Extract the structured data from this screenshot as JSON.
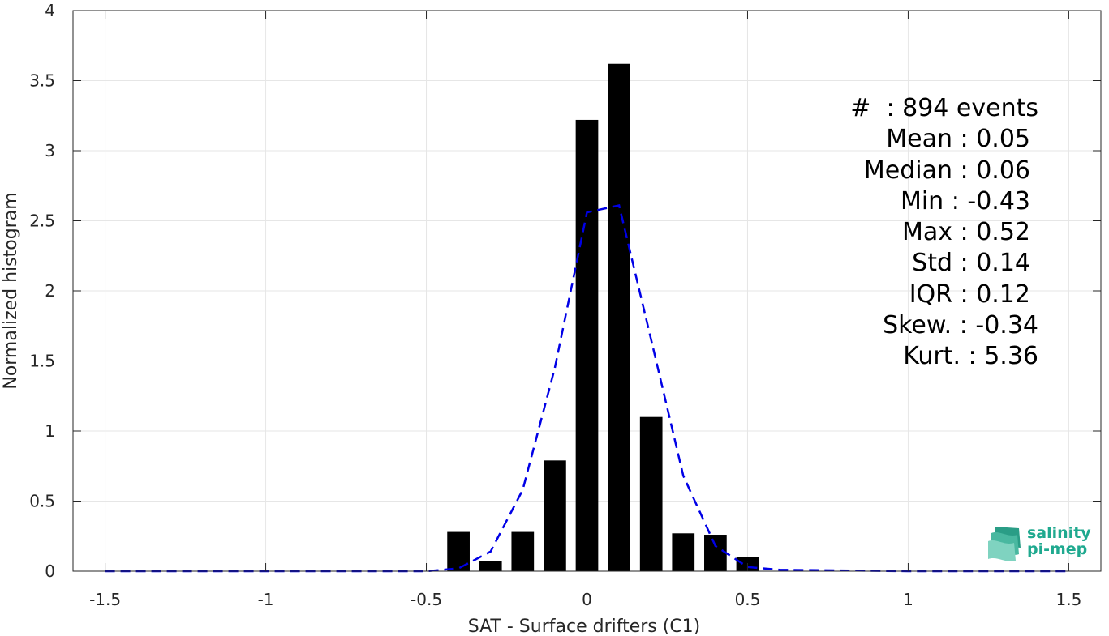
{
  "chart_data": {
    "type": "bar",
    "xlabel": "SAT - Surface drifters (C1)",
    "ylabel": "Normalized histogram",
    "xlim": [
      -1.6,
      1.6
    ],
    "ylim": [
      0,
      4
    ],
    "grid": true,
    "x_ticks": [
      "-1.5",
      "-1",
      "-0.5",
      "0",
      "0.5",
      "1",
      "1.5"
    ],
    "x_tick_values": [
      -1.5,
      -1,
      -0.5,
      0,
      0.5,
      1,
      1.5
    ],
    "y_ticks": [
      "0",
      "0.5",
      "1",
      "1.5",
      "2",
      "2.5",
      "3",
      "3.5",
      "4"
    ],
    "y_tick_values": [
      0,
      0.5,
      1,
      1.5,
      2,
      2.5,
      3,
      3.5,
      4
    ],
    "bars": {
      "x": [
        -0.4,
        -0.3,
        -0.2,
        -0.1,
        0.0,
        0.1,
        0.2,
        0.3,
        0.4,
        0.5
      ],
      "values": [
        0.28,
        0.07,
        0.28,
        0.79,
        3.22,
        3.62,
        1.1,
        0.27,
        0.26,
        0.1
      ],
      "color": "#000000"
    },
    "fit_line": {
      "style": "dashed",
      "color": "#0000e6",
      "x": [
        -1.5,
        -1.0,
        -0.5,
        -0.4,
        -0.3,
        -0.2,
        -0.1,
        0.0,
        0.1,
        0.2,
        0.3,
        0.4,
        0.5,
        0.6,
        1.0,
        1.5
      ],
      "y": [
        0,
        0,
        0.0,
        0.02,
        0.14,
        0.58,
        1.45,
        2.56,
        2.61,
        1.65,
        0.68,
        0.18,
        0.03,
        0.01,
        0,
        0
      ]
    }
  },
  "stats": [
    {
      "label": "#  : 894 events"
    },
    {
      "label": "Mean : 0.05"
    },
    {
      "label": "Median : 0.06"
    },
    {
      "label": "Min : -0.43"
    },
    {
      "label": "Max : 0.52"
    },
    {
      "label": "Std : 0.14"
    },
    {
      "label": "IQR : 0.12"
    },
    {
      "label": "Skew. : -0.34"
    },
    {
      "label": "Kurt. : 5.36"
    }
  ],
  "logo": {
    "line1": "salinity",
    "line2": "pi-mep",
    "color": "#1fa98f"
  }
}
